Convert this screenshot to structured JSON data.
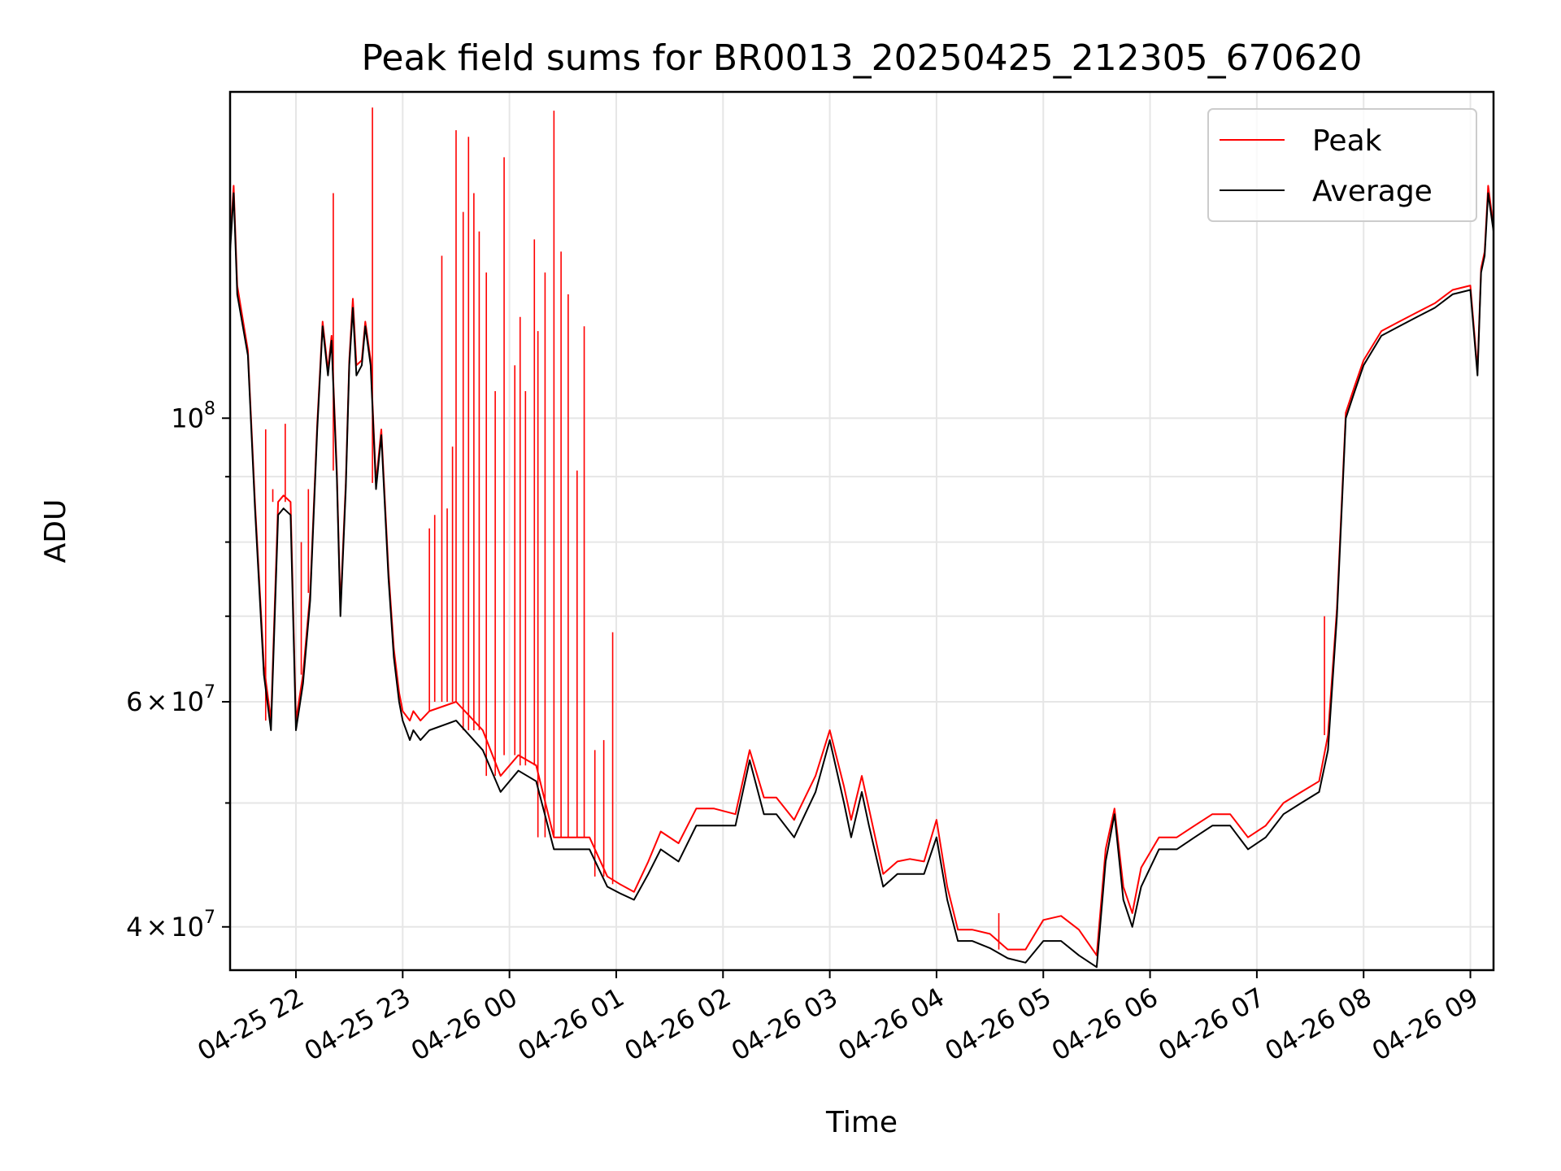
{
  "chart_data": {
    "type": "line",
    "title": "Peak field sums for BR0013_20250425_212305_670620",
    "xlabel": "Time",
    "ylabel": "ADU",
    "y_scale": "log",
    "ylim": [
      37000000,
      180000000
    ],
    "xlim": [
      "2025-04-25 21:23",
      "2025-04-26 09:13"
    ],
    "grid": true,
    "legend_position": "top-right",
    "x_ticks": [
      {
        "label": "04-25 22",
        "t": "2025-04-25 22:00"
      },
      {
        "label": "04-25 23",
        "t": "2025-04-25 23:00"
      },
      {
        "label": "04-26 00",
        "t": "2025-04-26 00:00"
      },
      {
        "label": "04-26 01",
        "t": "2025-04-26 01:00"
      },
      {
        "label": "04-26 02",
        "t": "2025-04-26 02:00"
      },
      {
        "label": "04-26 03",
        "t": "2025-04-26 03:00"
      },
      {
        "label": "04-26 04",
        "t": "2025-04-26 04:00"
      },
      {
        "label": "04-26 05",
        "t": "2025-04-26 05:00"
      },
      {
        "label": "04-26 06",
        "t": "2025-04-26 06:00"
      },
      {
        "label": "04-26 07",
        "t": "2025-04-26 07:00"
      },
      {
        "label": "04-26 08",
        "t": "2025-04-26 08:00"
      },
      {
        "label": "04-26 09",
        "t": "2025-04-26 09:00"
      }
    ],
    "y_ticks": [
      {
        "base": "4",
        "exp": "7",
        "mantissa": true,
        "value": 40000000
      },
      {
        "base": "6",
        "exp": "7",
        "mantissa": true,
        "value": 60000000
      },
      {
        "base": "10",
        "exp": "8",
        "mantissa": false,
        "value": 100000000
      }
    ],
    "y_minor_ticks": [
      50000000,
      70000000,
      80000000,
      90000000
    ],
    "series": [
      {
        "name": "Average",
        "color": "#000000",
        "x": [
          "2025-04-25 21:23",
          "2025-04-25 21:25",
          "2025-04-25 21:27",
          "2025-04-25 21:33",
          "2025-04-25 21:37",
          "2025-04-25 21:42",
          "2025-04-25 21:46",
          "2025-04-25 21:50",
          "2025-04-25 21:53",
          "2025-04-25 21:57",
          "2025-04-25 22:00",
          "2025-04-25 22:04",
          "2025-04-25 22:08",
          "2025-04-25 22:12",
          "2025-04-25 22:15",
          "2025-04-25 22:18",
          "2025-04-25 22:20",
          "2025-04-25 22:23",
          "2025-04-25 22:25",
          "2025-04-25 22:28",
          "2025-04-25 22:30",
          "2025-04-25 22:32",
          "2025-04-25 22:34",
          "2025-04-25 22:37",
          "2025-04-25 22:39",
          "2025-04-25 22:42",
          "2025-04-25 22:45",
          "2025-04-25 22:48",
          "2025-04-25 22:52",
          "2025-04-25 22:55",
          "2025-04-25 22:58",
          "2025-04-25 23:00",
          "2025-04-25 23:04",
          "2025-04-25 23:06",
          "2025-04-25 23:10",
          "2025-04-25 23:15",
          "2025-04-25 23:30",
          "2025-04-25 23:45",
          "2025-04-25 23:55",
          "2025-04-26 00:05",
          "2025-04-26 00:15",
          "2025-04-26 00:25",
          "2025-04-26 00:35",
          "2025-04-26 00:45",
          "2025-04-26 00:55",
          "2025-04-26 01:02",
          "2025-04-26 01:10",
          "2025-04-26 01:18",
          "2025-04-26 01:25",
          "2025-04-26 01:35",
          "2025-04-26 01:45",
          "2025-04-26 01:55",
          "2025-04-26 02:07",
          "2025-04-26 02:15",
          "2025-04-26 02:23",
          "2025-04-26 02:30",
          "2025-04-26 02:40",
          "2025-04-26 02:52",
          "2025-04-26 03:00",
          "2025-04-26 03:08",
          "2025-04-26 03:12",
          "2025-04-26 03:18",
          "2025-04-26 03:22",
          "2025-04-26 03:30",
          "2025-04-26 03:38",
          "2025-04-26 03:45",
          "2025-04-26 03:53",
          "2025-04-26 04:00",
          "2025-04-26 04:06",
          "2025-04-26 04:12",
          "2025-04-26 04:20",
          "2025-04-26 04:30",
          "2025-04-26 04:40",
          "2025-04-26 04:50",
          "2025-04-26 05:00",
          "2025-04-26 05:10",
          "2025-04-26 05:20",
          "2025-04-26 05:30",
          "2025-04-26 05:35",
          "2025-04-26 05:40",
          "2025-04-26 05:45",
          "2025-04-26 05:50",
          "2025-04-26 05:55",
          "2025-04-26 06:05",
          "2025-04-26 06:15",
          "2025-04-26 06:25",
          "2025-04-26 06:35",
          "2025-04-26 06:45",
          "2025-04-26 06:55",
          "2025-04-26 07:05",
          "2025-04-26 07:15",
          "2025-04-26 07:25",
          "2025-04-26 07:35",
          "2025-04-26 07:40",
          "2025-04-26 07:45",
          "2025-04-26 07:50",
          "2025-04-26 07:55",
          "2025-04-26 08:00",
          "2025-04-26 08:10",
          "2025-04-26 08:20",
          "2025-04-26 08:30",
          "2025-04-26 08:40",
          "2025-04-26 08:50",
          "2025-04-26 09:00",
          "2025-04-26 09:04",
          "2025-04-26 09:06",
          "2025-04-26 09:08",
          "2025-04-26 09:10",
          "2025-04-26 09:13"
        ],
        "y": [
          135000000,
          150000000,
          125000000,
          112000000,
          85000000,
          63000000,
          57000000,
          84000000,
          85000000,
          84000000,
          57000000,
          62000000,
          72000000,
          98000000,
          118000000,
          108000000,
          115000000,
          90000000,
          70000000,
          88000000,
          110000000,
          122000000,
          108000000,
          110000000,
          118000000,
          110000000,
          88000000,
          97000000,
          75000000,
          65000000,
          60000000,
          58000000,
          56000000,
          57000000,
          56000000,
          57000000,
          58000000,
          55000000,
          51000000,
          53000000,
          52000000,
          46000000,
          46000000,
          46000000,
          43000000,
          42500000,
          42000000,
          44000000,
          46000000,
          45000000,
          48000000,
          48000000,
          48000000,
          54000000,
          49000000,
          49000000,
          47000000,
          51000000,
          56000000,
          50000000,
          47000000,
          51000000,
          48000000,
          43000000,
          44000000,
          44000000,
          44000000,
          47000000,
          42000000,
          39000000,
          39000000,
          38500000,
          37800000,
          37500000,
          39000000,
          39000000,
          38000000,
          37200000,
          45000000,
          49000000,
          42000000,
          40000000,
          43000000,
          46000000,
          46000000,
          47000000,
          48000000,
          48000000,
          46000000,
          47000000,
          49000000,
          50000000,
          51000000,
          55000000,
          70000000,
          100000000,
          105000000,
          110000000,
          116000000,
          118000000,
          120000000,
          122000000,
          125000000,
          126000000,
          108000000,
          130000000,
          134000000,
          150000000,
          140000000
        ]
      },
      {
        "name": "Peak",
        "color": "#ff0000",
        "x": [
          "2025-04-25 21:23",
          "2025-04-25 21:25",
          "2025-04-25 21:27",
          "2025-04-25 21:33",
          "2025-04-25 21:37",
          "2025-04-25 21:42",
          "2025-04-25 21:46",
          "2025-04-25 21:50",
          "2025-04-25 21:53",
          "2025-04-25 21:57",
          "2025-04-25 22:00",
          "2025-04-25 22:04",
          "2025-04-25 22:08",
          "2025-04-25 22:12",
          "2025-04-25 22:15",
          "2025-04-25 22:18",
          "2025-04-25 22:20",
          "2025-04-25 22:23",
          "2025-04-25 22:25",
          "2025-04-25 22:28",
          "2025-04-25 22:30",
          "2025-04-25 22:32",
          "2025-04-25 22:34",
          "2025-04-25 22:37",
          "2025-04-25 22:39",
          "2025-04-25 22:42",
          "2025-04-25 22:45",
          "2025-04-25 22:48",
          "2025-04-25 22:52",
          "2025-04-25 22:55",
          "2025-04-25 22:58",
          "2025-04-25 23:00",
          "2025-04-25 23:04",
          "2025-04-25 23:06",
          "2025-04-25 23:10",
          "2025-04-25 23:15",
          "2025-04-25 23:30",
          "2025-04-25 23:45",
          "2025-04-25 23:55",
          "2025-04-26 00:05",
          "2025-04-26 00:15",
          "2025-04-26 00:25",
          "2025-04-26 00:35",
          "2025-04-26 00:45",
          "2025-04-26 00:55",
          "2025-04-26 01:02",
          "2025-04-26 01:10",
          "2025-04-26 01:18",
          "2025-04-26 01:25",
          "2025-04-26 01:35",
          "2025-04-26 01:45",
          "2025-04-26 01:55",
          "2025-04-26 02:07",
          "2025-04-26 02:15",
          "2025-04-26 02:23",
          "2025-04-26 02:30",
          "2025-04-26 02:40",
          "2025-04-26 02:52",
          "2025-04-26 03:00",
          "2025-04-26 03:08",
          "2025-04-26 03:12",
          "2025-04-26 03:18",
          "2025-04-26 03:22",
          "2025-04-26 03:30",
          "2025-04-26 03:38",
          "2025-04-26 03:45",
          "2025-04-26 03:53",
          "2025-04-26 04:00",
          "2025-04-26 04:06",
          "2025-04-26 04:12",
          "2025-04-26 04:20",
          "2025-04-26 04:30",
          "2025-04-26 04:40",
          "2025-04-26 04:50",
          "2025-04-26 05:00",
          "2025-04-26 05:10",
          "2025-04-26 05:20",
          "2025-04-26 05:30",
          "2025-04-26 05:35",
          "2025-04-26 05:40",
          "2025-04-26 05:45",
          "2025-04-26 05:50",
          "2025-04-26 05:55",
          "2025-04-26 06:05",
          "2025-04-26 06:15",
          "2025-04-26 06:25",
          "2025-04-26 06:35",
          "2025-04-26 06:45",
          "2025-04-26 06:55",
          "2025-04-26 07:05",
          "2025-04-26 07:15",
          "2025-04-26 07:25",
          "2025-04-26 07:35",
          "2025-04-26 07:40",
          "2025-04-26 07:45",
          "2025-04-26 07:50",
          "2025-04-26 07:55",
          "2025-04-26 08:00",
          "2025-04-26 08:10",
          "2025-04-26 08:20",
          "2025-04-26 08:30",
          "2025-04-26 08:40",
          "2025-04-26 08:50",
          "2025-04-26 09:00",
          "2025-04-26 09:04",
          "2025-04-26 09:06",
          "2025-04-26 09:08",
          "2025-04-26 09:10",
          "2025-04-26 09:13"
        ],
        "y": [
          137000000,
          152000000,
          127000000,
          113000000,
          86000000,
          64000000,
          58000000,
          86000000,
          87000000,
          86000000,
          58000000,
          63000000,
          73000000,
          99000000,
          119000000,
          109000000,
          116000000,
          91000000,
          71000000,
          89000000,
          111000000,
          124000000,
          110000000,
          111000000,
          119000000,
          111000000,
          89000000,
          98000000,
          76000000,
          66000000,
          61000000,
          59000000,
          58000000,
          59000000,
          58000000,
          59000000,
          60000000,
          57000000,
          52500000,
          54500000,
          53500000,
          47000000,
          47000000,
          47000000,
          43800000,
          43200000,
          42600000,
          45000000,
          47500000,
          46500000,
          49500000,
          49500000,
          49000000,
          55000000,
          50500000,
          50500000,
          48500000,
          52500000,
          57000000,
          51500000,
          48500000,
          52500000,
          49500000,
          44000000,
          45000000,
          45200000,
          45000000,
          48500000,
          43000000,
          39800000,
          39800000,
          39500000,
          38400000,
          38400000,
          40500000,
          40800000,
          39800000,
          38000000,
          46000000,
          49500000,
          43000000,
          41000000,
          44500000,
          47000000,
          47000000,
          48000000,
          49000000,
          49000000,
          47000000,
          48000000,
          50000000,
          51000000,
          52000000,
          56500000,
          71000000,
          101000000,
          106000000,
          111000000,
          117000000,
          119000000,
          121000000,
          123000000,
          126000000,
          127000000,
          109000000,
          131000000,
          135000000,
          152000000,
          141000000
        ],
        "spikes": [
          {
            "t": "2025-04-25 21:43",
            "y": 98000000
          },
          {
            "t": "2025-04-25 21:47",
            "y": 88000000
          },
          {
            "t": "2025-04-25 21:54",
            "y": 99000000
          },
          {
            "t": "2025-04-25 22:03",
            "y": 80000000
          },
          {
            "t": "2025-04-25 22:07",
            "y": 88000000
          },
          {
            "t": "2025-04-25 22:21",
            "y": 150000000
          },
          {
            "t": "2025-04-25 22:43",
            "y": 175000000
          },
          {
            "t": "2025-04-25 23:15",
            "y": 82000000
          },
          {
            "t": "2025-04-25 23:18",
            "y": 84000000
          },
          {
            "t": "2025-04-25 23:22",
            "y": 134000000
          },
          {
            "t": "2025-04-25 23:25",
            "y": 85000000
          },
          {
            "t": "2025-04-25 23:28",
            "y": 95000000
          },
          {
            "t": "2025-04-25 23:30",
            "y": 168000000
          },
          {
            "t": "2025-04-25 23:34",
            "y": 145000000
          },
          {
            "t": "2025-04-25 23:37",
            "y": 166000000
          },
          {
            "t": "2025-04-25 23:40",
            "y": 150000000
          },
          {
            "t": "2025-04-25 23:43",
            "y": 140000000
          },
          {
            "t": "2025-04-25 23:47",
            "y": 130000000
          },
          {
            "t": "2025-04-25 23:52",
            "y": 105000000
          },
          {
            "t": "2025-04-25 23:57",
            "y": 160000000
          },
          {
            "t": "2025-04-26 00:03",
            "y": 110000000
          },
          {
            "t": "2025-04-26 00:06",
            "y": 120000000
          },
          {
            "t": "2025-04-26 00:09",
            "y": 105000000
          },
          {
            "t": "2025-04-26 00:14",
            "y": 138000000
          },
          {
            "t": "2025-04-26 00:16",
            "y": 117000000
          },
          {
            "t": "2025-04-26 00:20",
            "y": 130000000
          },
          {
            "t": "2025-04-26 00:25",
            "y": 174000000
          },
          {
            "t": "2025-04-26 00:29",
            "y": 135000000
          },
          {
            "t": "2025-04-26 00:33",
            "y": 125000000
          },
          {
            "t": "2025-04-26 00:38",
            "y": 91000000
          },
          {
            "t": "2025-04-26 00:42",
            "y": 118000000
          },
          {
            "t": "2025-04-26 00:48",
            "y": 55000000
          },
          {
            "t": "2025-04-26 00:53",
            "y": 56000000
          },
          {
            "t": "2025-04-26 00:58",
            "y": 68000000
          },
          {
            "t": "2025-04-26 04:35",
            "y": 41000000
          },
          {
            "t": "2025-04-26 07:38",
            "y": 70000000
          }
        ]
      }
    ]
  }
}
